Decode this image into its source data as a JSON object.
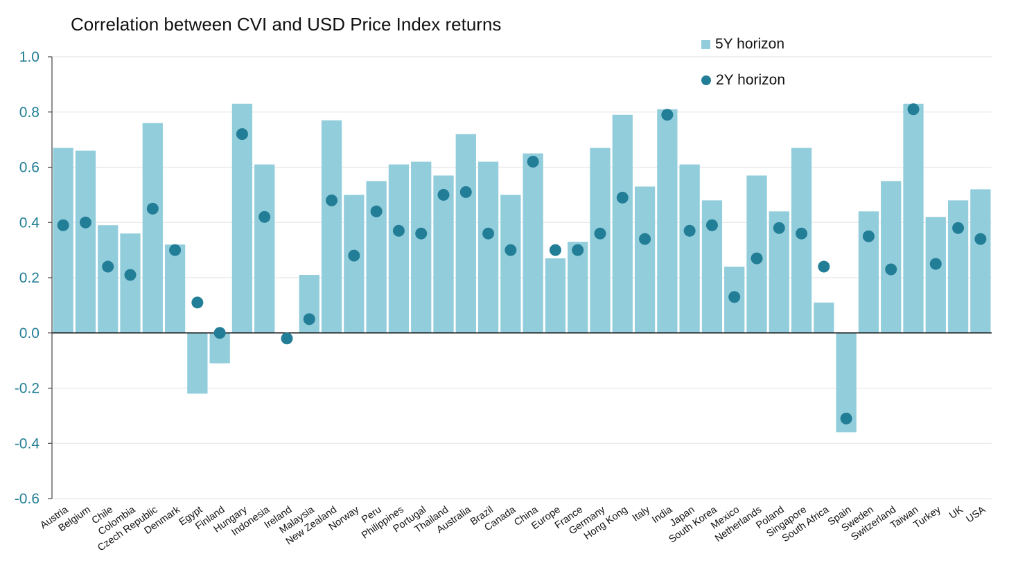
{
  "chart_data": {
    "type": "bar",
    "title": "Correlation between CVI and USD Price Index returns",
    "xlabel": "",
    "ylabel": "",
    "ylim": [
      -0.6,
      1.0
    ],
    "yticks": [
      "1.0",
      "0.8",
      "0.6",
      "0.4",
      "0.2",
      "0.0",
      "-0.2",
      "-0.4",
      "-0.6"
    ],
    "ytick_values": [
      1.0,
      0.8,
      0.6,
      0.4,
      0.2,
      0.0,
      -0.2,
      -0.4,
      -0.6
    ],
    "grid": true,
    "legend_position": "top-right",
    "categories": [
      "Austria",
      "Belgium",
      "Chile",
      "Colombia",
      "Czech Republic",
      "Denmark",
      "Egypt",
      "Finland",
      "Hungary",
      "Indonesia",
      "Ireland",
      "Malaysia",
      "New Zealand",
      "Norway",
      "Peru",
      "Philippines",
      "Portugal",
      "Thailand",
      "Australia",
      "Brazil",
      "Canada",
      "China",
      "Europe",
      "France",
      "Germany",
      "Hong Kong",
      "Italy",
      "India",
      "Japan",
      "South Korea",
      "Mexico",
      "Netherlands",
      "Poland",
      "Singapore",
      "South Africa",
      "Spain",
      "Sweden",
      "Switzerland",
      "Taiwan",
      "Turkey",
      "UK",
      "USA"
    ],
    "series": [
      {
        "name": "5Y horizon",
        "kind": "bar",
        "color": "#92cddc",
        "values": [
          0.67,
          0.66,
          0.39,
          0.36,
          0.76,
          0.32,
          -0.22,
          -0.11,
          0.83,
          0.61,
          0.0,
          0.21,
          0.77,
          0.5,
          0.55,
          0.61,
          0.62,
          0.57,
          0.72,
          0.62,
          0.5,
          0.65,
          0.27,
          0.33,
          0.67,
          0.79,
          0.53,
          0.81,
          0.61,
          0.48,
          0.24,
          0.57,
          0.44,
          0.67,
          0.11,
          -0.36,
          0.44,
          0.55,
          0.83,
          0.42,
          0.48,
          0.52
        ]
      },
      {
        "name": "2Y horizon",
        "kind": "dot",
        "color": "#227e96",
        "values": [
          0.39,
          0.4,
          0.24,
          0.21,
          0.45,
          0.3,
          0.11,
          0.0,
          0.72,
          0.42,
          -0.02,
          0.05,
          0.48,
          0.28,
          0.44,
          0.37,
          0.36,
          0.5,
          0.51,
          0.36,
          0.3,
          0.62,
          0.3,
          0.3,
          0.36,
          0.49,
          0.34,
          0.79,
          0.37,
          0.39,
          0.13,
          0.27,
          0.38,
          0.36,
          0.24,
          -0.31,
          0.35,
          0.23,
          0.81,
          0.25,
          0.38,
          0.34
        ]
      }
    ]
  },
  "legend": {
    "items": [
      {
        "label": "5Y horizon",
        "marker": "bar"
      },
      {
        "label": "2Y horizon",
        "marker": "dot"
      }
    ]
  },
  "colors": {
    "bar": "#92cddc",
    "dot": "#227e96",
    "axis_label": "#227e96",
    "grid": "#e8e8e8"
  }
}
